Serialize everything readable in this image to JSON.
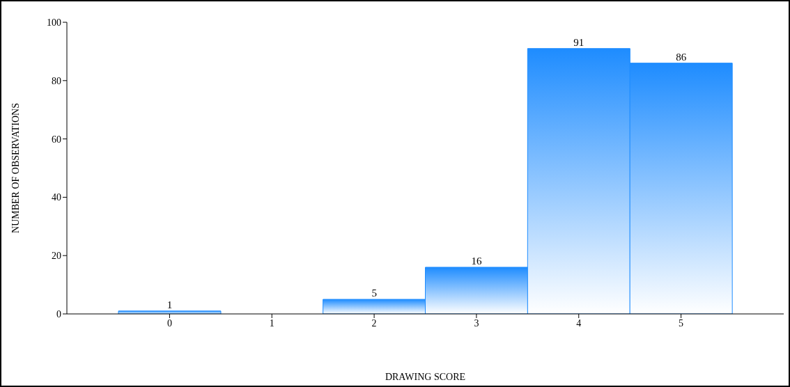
{
  "chart_data": {
    "type": "bar",
    "xlabel": "DRAWING SCORE",
    "ylabel": "NUMBER OF OBSERVATIONS",
    "categories": [
      "0",
      "1",
      "2",
      "3",
      "4",
      "5"
    ],
    "values": [
      1,
      0,
      5,
      16,
      91,
      86
    ],
    "value_labels": [
      "1",
      null,
      "5",
      "16",
      "91",
      "86"
    ],
    "color": "#1e8cff",
    "ylim": [
      0,
      100
    ],
    "yticks": [
      0,
      20,
      40,
      60,
      80,
      100
    ],
    "grid": false
  }
}
